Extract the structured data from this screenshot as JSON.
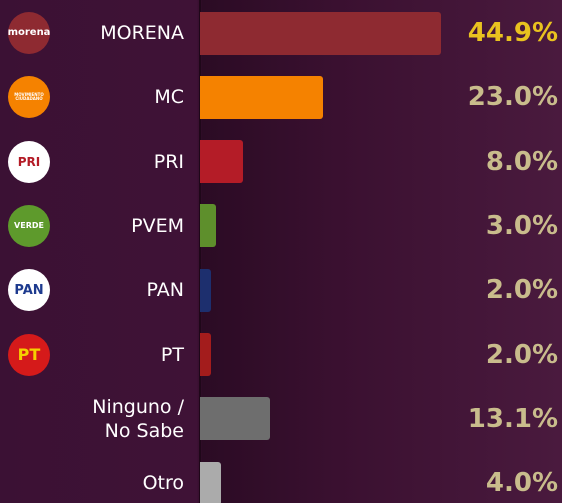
{
  "chart_data": {
    "type": "bar",
    "orientation": "horizontal",
    "categories": [
      "MORENA",
      "MC",
      "PRI",
      "PVEM",
      "PAN",
      "PT",
      "Ninguno / No Sabe",
      "Otro"
    ],
    "values": [
      44.9,
      23.0,
      8.0,
      3.0,
      2.0,
      2.0,
      13.1,
      4.0
    ],
    "value_labels": [
      "44.9%",
      "23.0%",
      "8.0%",
      "3.0%",
      "2.0%",
      "2.0%",
      "13.1%",
      "4.0%"
    ],
    "colors": [
      "#8e2a31",
      "#f58200",
      "#b41c27",
      "#5e8f2c",
      "#1d2f6e",
      "#a31c1c",
      "#6e6e6e",
      "#ababab"
    ],
    "value_label_colors": [
      "#e9c21f",
      "#c9bc8c",
      "#c9bc8c",
      "#c9bc8c",
      "#c9bc8c",
      "#c9bc8c",
      "#c9bc8c",
      "#c9bc8c"
    ]
  },
  "logos": [
    {
      "text": "morena",
      "bg": "#8e2a31",
      "fg": "#ffffff"
    },
    {
      "text": "MOVIMIENTO CIUDADANO",
      "bg": "#f58200",
      "fg": "#ffffff"
    },
    {
      "text": "PRI",
      "bg": "#ffffff",
      "fg": "#b41c27"
    },
    {
      "text": "VERDE",
      "bg": "#5e9a2c",
      "fg": "#ffffff"
    },
    {
      "text": "PAN",
      "bg": "#ffffff",
      "fg": "#1d3a8e"
    },
    {
      "text": "PT",
      "bg": "#d51a1a",
      "fg": "#f5d000"
    }
  ]
}
